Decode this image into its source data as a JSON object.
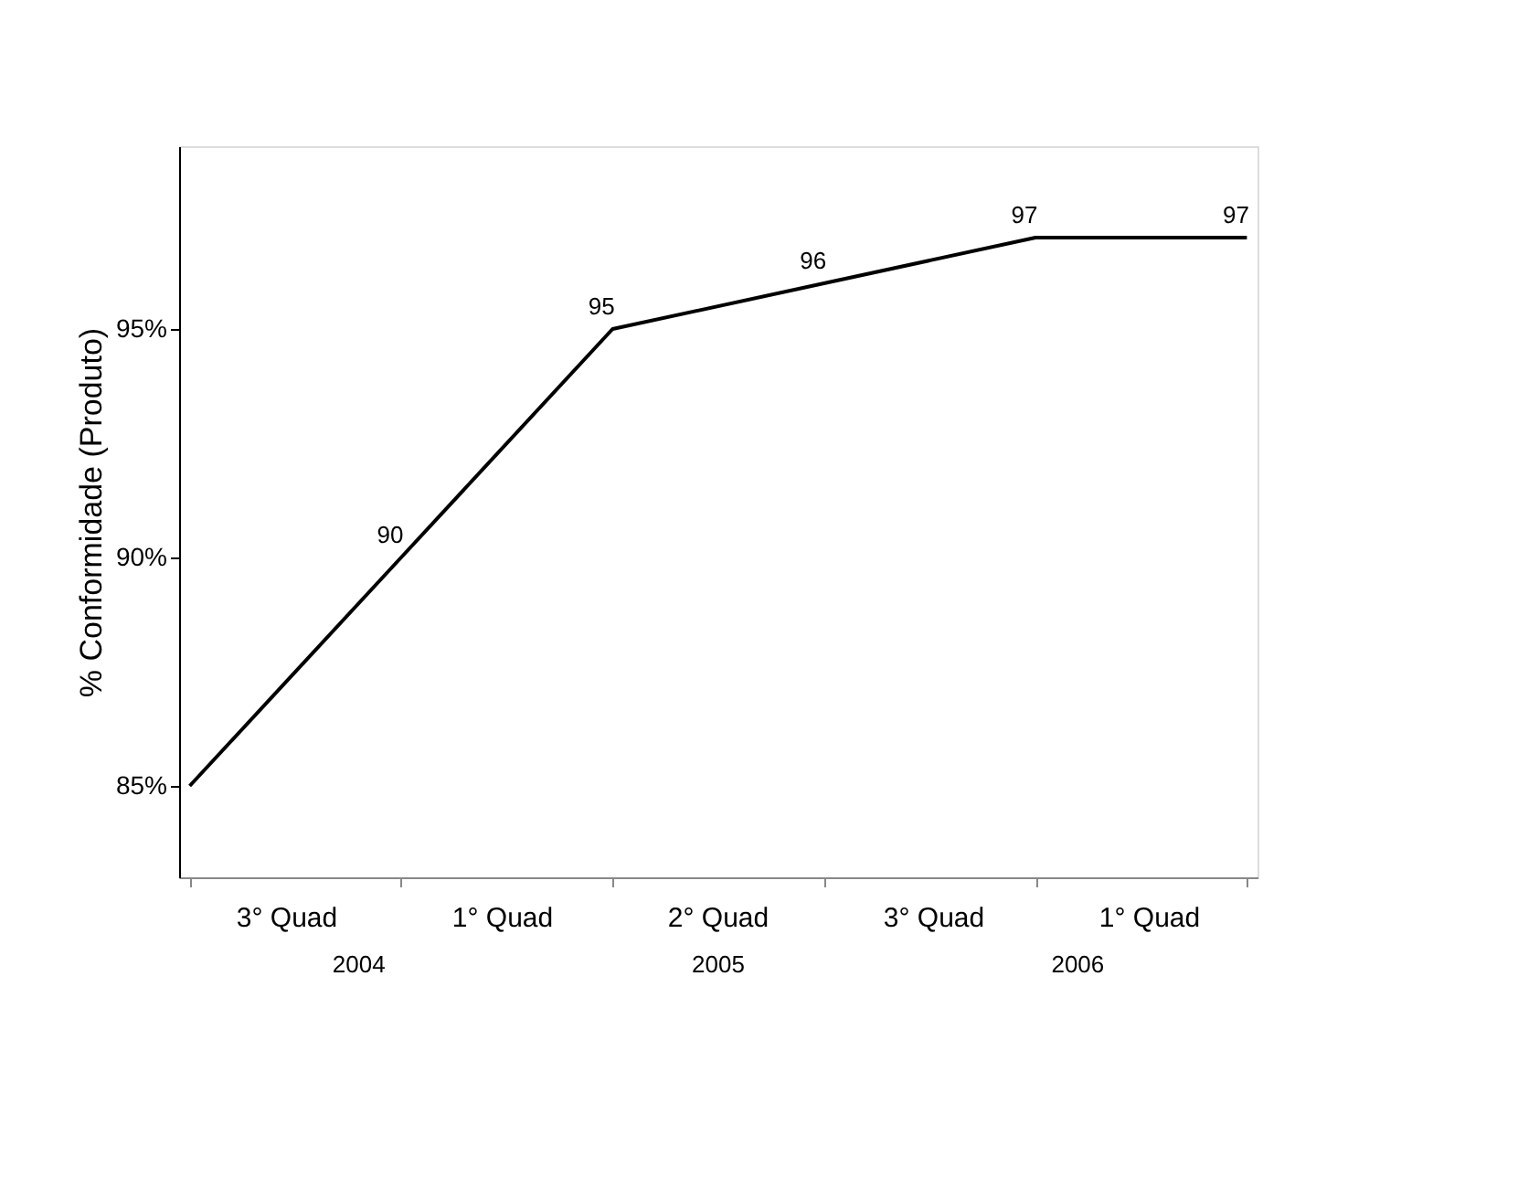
{
  "chart_data": {
    "type": "line",
    "ylabel": "% Conformidade  (Produto)",
    "categories": [
      null,
      null,
      null,
      null,
      null,
      null
    ],
    "series": [
      {
        "color": "#000000",
        "values": [
          85,
          90,
          95,
          96,
          97,
          97
        ],
        "value_labels": [
          null,
          "90",
          "95",
          "96",
          "97",
          "97"
        ]
      }
    ],
    "ylim": [
      83,
      99
    ],
    "yticks": [
      {
        "value": 85,
        "label": "85%"
      },
      {
        "value": 90,
        "label": "90%"
      },
      {
        "value": 95,
        "label": "95%"
      }
    ],
    "grid": false,
    "marker": "none",
    "line_style": "solid",
    "annotations": [
      "3° Quad",
      "1° Quad",
      "2° Quad",
      "3° Quad",
      "1° Quad",
      "2004",
      "2005",
      "2006"
    ]
  }
}
